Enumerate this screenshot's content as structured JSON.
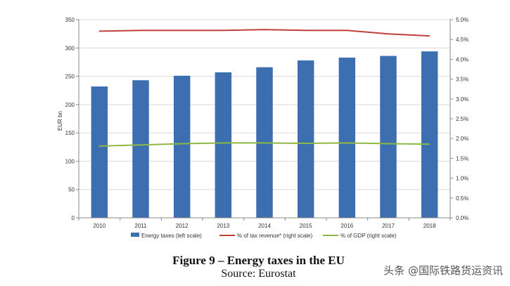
{
  "chart_data": {
    "type": "bar",
    "title": "",
    "categories": [
      "2010",
      "2011",
      "2012",
      "2013",
      "2014",
      "2015",
      "2016",
      "2017",
      "2018"
    ],
    "ylabel": "EUR bn",
    "ylim": [
      0,
      350
    ],
    "y_ticks": [
      "0",
      "50",
      "100",
      "150",
      "200",
      "250",
      "300",
      "350"
    ],
    "y2lim": [
      0,
      5.0
    ],
    "y2_ticks": [
      "0.0%",
      "0.5%",
      "1.0%",
      "1.5%",
      "2.0%",
      "2.5%",
      "3.0%",
      "3.5%",
      "4.0%",
      "4.5%",
      "5.0%"
    ],
    "grid": true,
    "legend_position": "bottom",
    "series": [
      {
        "name": "Energy taxes (left scale)",
        "type": "bar",
        "axis": "left",
        "color": "#3d6fb0",
        "values": [
          232,
          243,
          251,
          257,
          266,
          278,
          283,
          286,
          294
        ]
      },
      {
        "name": "% of tax revenue* (right scale)",
        "type": "line",
        "axis": "right",
        "color": "#c0403a",
        "values": [
          4.71,
          4.73,
          4.73,
          4.73,
          4.75,
          4.73,
          4.73,
          4.64,
          4.59
        ]
      },
      {
        "name": "% of GDP (right scale)",
        "type": "line",
        "axis": "right",
        "color": "#8db843",
        "values": [
          1.81,
          1.84,
          1.87,
          1.89,
          1.89,
          1.88,
          1.89,
          1.87,
          1.86
        ]
      }
    ]
  },
  "caption": {
    "title": "Figure 9 – Energy taxes in the EU",
    "source": "Source: Eurostat"
  },
  "watermark": "头条 @国际铁路货运资讯"
}
